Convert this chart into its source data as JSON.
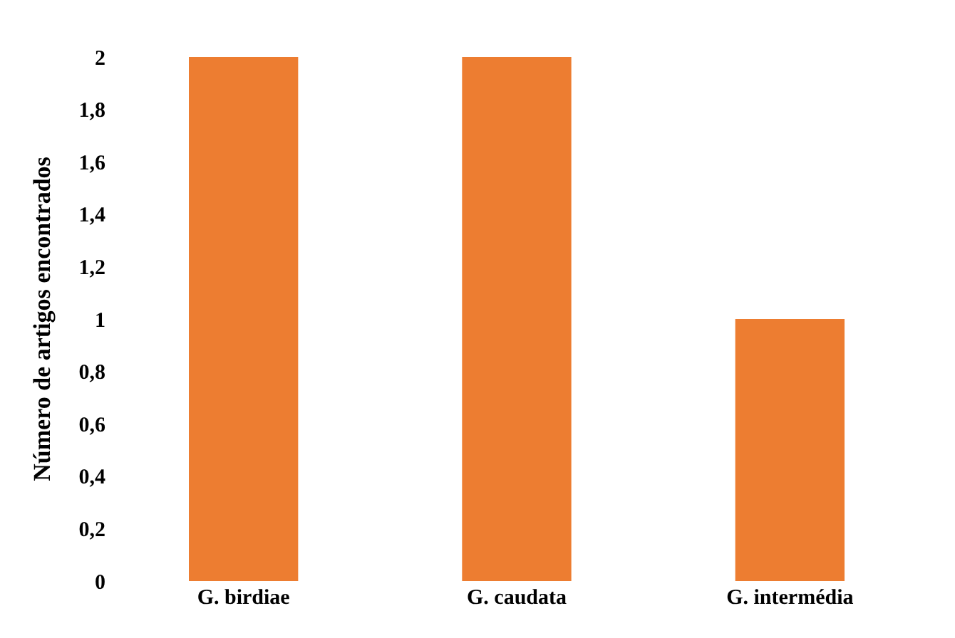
{
  "chart_data": {
    "type": "bar",
    "ylabel": "Número de artigos encontrados",
    "categories": [
      "G. birdiae",
      "G. caudata",
      "G. intermédia"
    ],
    "values": [
      2,
      2,
      1
    ],
    "color": "#ed7d31",
    "ylim": [
      0,
      2
    ],
    "yticks": [
      0,
      {
        "value": 0.2,
        "label": "0,2"
      },
      {
        "value": 0.4,
        "label": "0,4"
      },
      {
        "value": 0.6,
        "label": "0,6"
      },
      {
        "value": 0.8,
        "label": "0,8"
      },
      1,
      {
        "value": 1.2,
        "label": "1,2"
      },
      {
        "value": 1.4,
        "label": "1,4"
      },
      {
        "value": 1.6,
        "label": "1,6"
      },
      {
        "value": 1.8,
        "label": "1,8"
      },
      2
    ]
  }
}
